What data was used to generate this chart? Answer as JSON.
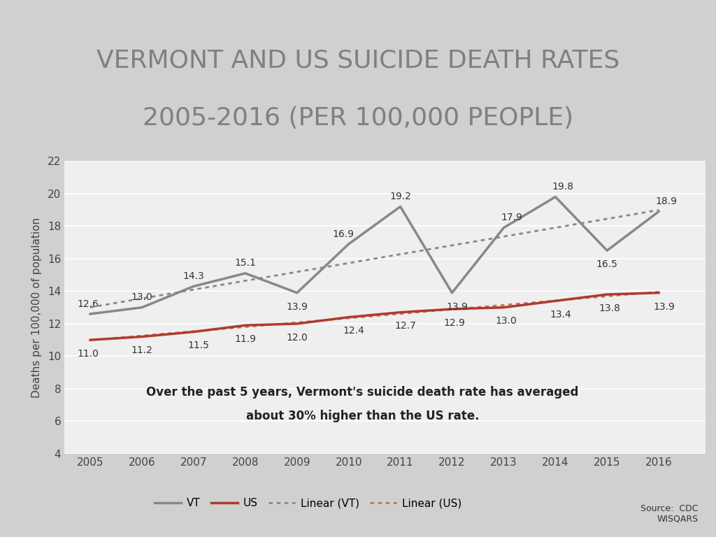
{
  "title_line1": "VERMONT AND US SUICIDE DEATH RATES",
  "title_line2": "2005-2016 (PER 100,000 PEOPLE)",
  "years": [
    2005,
    2006,
    2007,
    2008,
    2009,
    2010,
    2011,
    2012,
    2013,
    2014,
    2015,
    2016
  ],
  "vt_values": [
    12.6,
    13.0,
    14.3,
    15.1,
    13.9,
    16.9,
    19.2,
    13.9,
    17.9,
    19.8,
    16.5,
    18.9
  ],
  "us_values": [
    11.0,
    11.2,
    11.5,
    11.9,
    12.0,
    12.4,
    12.7,
    12.9,
    13.0,
    13.4,
    13.8,
    13.9
  ],
  "vt_color": "#888888",
  "us_color": "#b03a2e",
  "linear_vt_color": "#888888",
  "linear_us_color": "#c0735a",
  "ylim": [
    4,
    22
  ],
  "yticks": [
    4,
    6,
    8,
    10,
    12,
    14,
    16,
    18,
    20,
    22
  ],
  "ylabel": "Deaths per 100,000 of population",
  "annotation_line1": "Over the past 5 years, Vermont's suicide death rate has averaged",
  "annotation_line2": "about 30% higher than the US rate.",
  "source_text": "Source:  CDC\nWISQARS",
  "bg_outer": "#d0d0d0",
  "bg_title": "#f8f8f8",
  "bg_plot": "#efefef",
  "title_color": "#808080",
  "grid_color": "#ffffff",
  "tick_label_color": "#444444",
  "border_color": "#bbbbbb"
}
